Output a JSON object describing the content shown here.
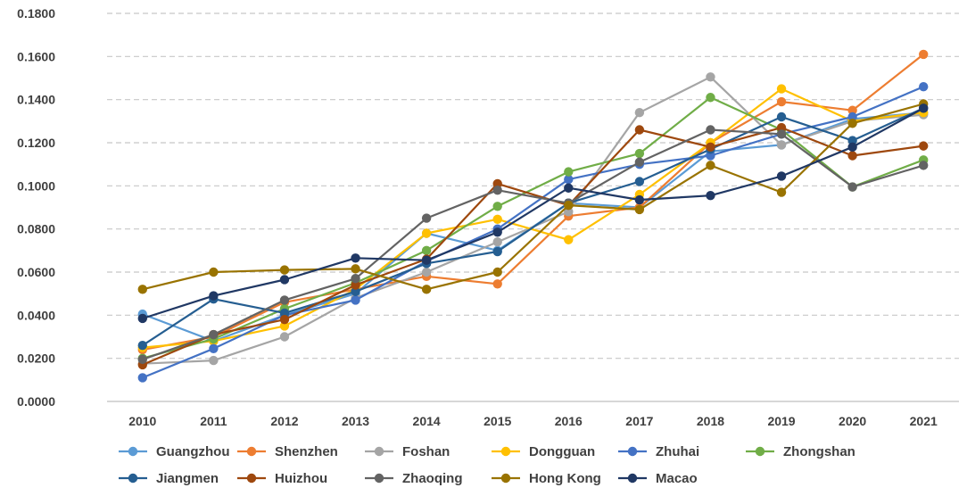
{
  "chart_data": {
    "type": "line",
    "title": "",
    "xlabel": "",
    "ylabel": "",
    "ylim": [
      0,
      0.18
    ],
    "yticks": [
      "0.0000",
      "0.0200",
      "0.0400",
      "0.0600",
      "0.0800",
      "0.1000",
      "0.1200",
      "0.1400",
      "0.1600",
      "0.1800"
    ],
    "x": [
      "2010",
      "2011",
      "2012",
      "2013",
      "2014",
      "2015",
      "2016",
      "2017",
      "2018",
      "2019",
      "2020",
      "2021"
    ],
    "grid": true,
    "legend_position": "bottom",
    "series": [
      {
        "name": "Guangzhou",
        "color": "#5b9bd5",
        "values": [
          0.0405,
          0.028,
          0.04,
          0.05,
          0.078,
          0.07,
          0.092,
          0.09,
          0.116,
          0.119,
          0.131,
          0.134
        ]
      },
      {
        "name": "Shenzhen",
        "color": "#ed7d31",
        "values": [
          0.024,
          0.03,
          0.046,
          0.052,
          0.058,
          0.0545,
          0.086,
          0.09,
          0.12,
          0.139,
          0.135,
          0.161
        ]
      },
      {
        "name": "Foshan",
        "color": "#a5a5a5",
        "values": [
          0.0175,
          0.019,
          0.03,
          0.048,
          0.06,
          0.074,
          0.088,
          0.134,
          0.1505,
          0.119,
          0.13,
          0.133
        ]
      },
      {
        "name": "Dongguan",
        "color": "#ffc000",
        "values": [
          0.025,
          0.028,
          0.035,
          0.052,
          0.078,
          0.0845,
          0.075,
          0.096,
          0.12,
          0.145,
          0.13,
          0.134
        ]
      },
      {
        "name": "Zhuhai",
        "color": "#4472c4",
        "values": [
          0.011,
          0.0245,
          0.04,
          0.047,
          0.065,
          0.08,
          0.103,
          0.11,
          0.114,
          0.124,
          0.132,
          0.146
        ]
      },
      {
        "name": "Zhongshan",
        "color": "#70ad47",
        "values": [
          0.02,
          0.029,
          0.043,
          0.055,
          0.07,
          0.0905,
          0.1065,
          0.115,
          0.141,
          0.126,
          0.0995,
          0.112
        ]
      },
      {
        "name": "Jiangmen",
        "color": "#255e91",
        "values": [
          0.026,
          0.0475,
          0.041,
          0.051,
          0.064,
          0.0695,
          0.092,
          0.102,
          0.117,
          0.132,
          0.121,
          0.136
        ]
      },
      {
        "name": "Huizhou",
        "color": "#9e480e",
        "values": [
          0.017,
          0.031,
          0.038,
          0.054,
          0.066,
          0.101,
          0.091,
          0.126,
          0.118,
          0.127,
          0.114,
          0.1185
        ]
      },
      {
        "name": "Zhaoqing",
        "color": "#636363",
        "values": [
          0.0195,
          0.031,
          0.047,
          0.057,
          0.085,
          0.098,
          0.092,
          0.111,
          0.126,
          0.124,
          0.0995,
          0.1095
        ]
      },
      {
        "name": "Hong Kong",
        "color": "#997300",
        "values": [
          0.052,
          0.06,
          0.061,
          0.0615,
          0.052,
          0.06,
          0.091,
          0.089,
          0.1095,
          0.097,
          0.129,
          0.138
        ]
      },
      {
        "name": "Macao",
        "color": "#203864",
        "values": [
          0.0385,
          0.049,
          0.0565,
          0.0665,
          0.0655,
          0.0785,
          0.099,
          0.0935,
          0.0955,
          0.1045,
          0.118,
          0.136
        ]
      }
    ]
  }
}
